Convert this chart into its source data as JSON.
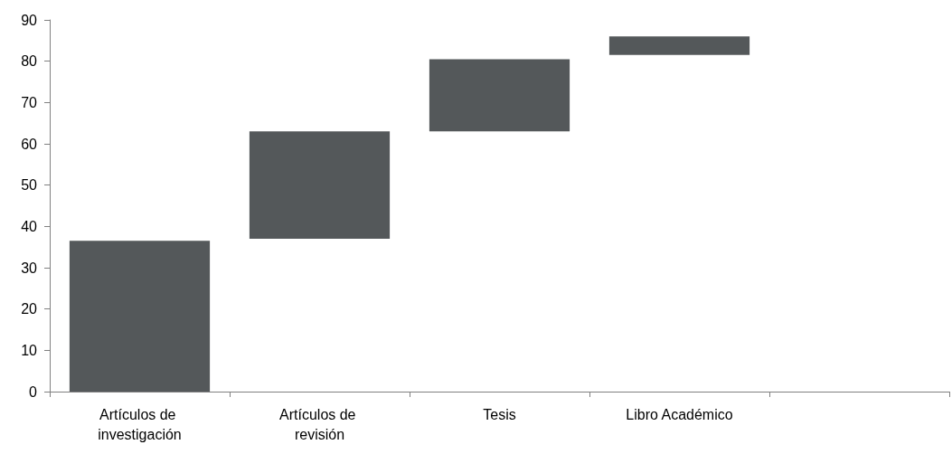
{
  "chart_data": {
    "type": "bar",
    "categories": [
      "Artículos de investigación",
      "Artículos de revisión",
      "Tesis",
      "Libro Académico",
      null
    ],
    "values": [
      36.5,
      26,
      17.5,
      4.5,
      null
    ],
    "base": [
      0,
      37,
      63,
      81.5,
      null
    ],
    "color": "#54585a",
    "ylim": [
      0,
      90
    ],
    "yticks": [
      0,
      10,
      20,
      30,
      40,
      50,
      60,
      70,
      80,
      90
    ],
    "grid": false
  }
}
